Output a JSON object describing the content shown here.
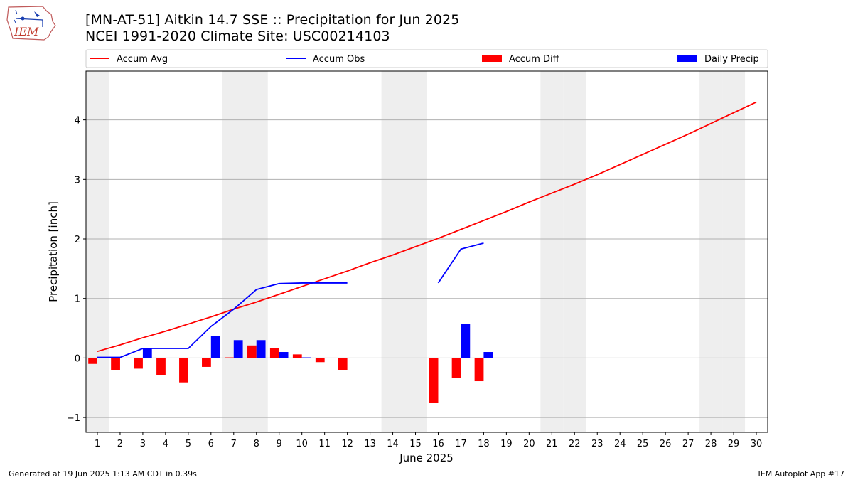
{
  "header": {
    "title_line1": "[MN-AT-51] Aitkin 14.7 SSE :: Precipitation for Jun 2025",
    "title_line2": "NCEI 1991-2020 Climate Site: USC00214103",
    "logo_text": "IEM"
  },
  "footer": {
    "generated": "Generated at 19 Jun 2025 1:13 AM CDT in 0.39s",
    "app": "IEM Autoplot App #17"
  },
  "colors": {
    "accum_avg": "#ff0000",
    "accum_obs": "#0000ff",
    "accum_diff": "#ff0000",
    "daily_precip": "#0000ff",
    "weekend_shading": "#eeeeee",
    "grid": "#b0b0b0"
  },
  "chart_data": {
    "type": "bar",
    "xlabel": "June 2025",
    "ylabel": "Precipitation [inch]",
    "xlim": [
      0.5,
      30.5
    ],
    "ylim": [
      -1.25,
      4.82
    ],
    "x_ticks": [
      1,
      2,
      3,
      4,
      5,
      6,
      7,
      8,
      9,
      10,
      11,
      12,
      13,
      14,
      15,
      16,
      17,
      18,
      19,
      20,
      21,
      22,
      23,
      24,
      25,
      26,
      27,
      28,
      29,
      30
    ],
    "y_ticks": [
      -1,
      0,
      1,
      2,
      3,
      4
    ],
    "grid": "horizontal",
    "legend_position": "top",
    "legend": [
      "Accum Avg",
      "Accum Obs",
      "Accum Diff",
      "Daily Precip"
    ],
    "weekend_days": [
      1,
      7,
      8,
      14,
      15,
      21,
      22,
      28,
      29
    ],
    "series": [
      {
        "name": "Accum Avg",
        "kind": "line",
        "x": [
          1,
          2,
          3,
          4,
          5,
          6,
          7,
          8,
          9,
          10,
          11,
          12,
          13,
          14,
          15,
          16,
          17,
          18,
          19,
          20,
          21,
          22,
          23,
          24,
          25,
          26,
          27,
          28,
          29,
          30
        ],
        "values": [
          0.11,
          0.22,
          0.34,
          0.45,
          0.57,
          0.69,
          0.82,
          0.94,
          1.07,
          1.2,
          1.33,
          1.46,
          1.6,
          1.73,
          1.87,
          2.01,
          2.16,
          2.31,
          2.46,
          2.62,
          2.77,
          2.92,
          3.08,
          3.25,
          3.42,
          3.59,
          3.76,
          3.94,
          4.12,
          4.3
        ]
      },
      {
        "name": "Accum Obs",
        "kind": "line",
        "segments": [
          {
            "x": [
              1,
              2,
              3,
              4,
              5,
              6,
              7,
              8,
              9,
              10,
              11,
              12
            ],
            "values": [
              0.01,
              0.01,
              0.16,
              0.16,
              0.16,
              0.53,
              0.82,
              1.15,
              1.25,
              1.26,
              1.26,
              1.26
            ]
          },
          {
            "x": [
              16,
              17,
              18
            ],
            "values": [
              1.26,
              1.83,
              1.93
            ]
          }
        ]
      },
      {
        "name": "Accum Diff",
        "kind": "bar",
        "x": [
          1,
          2,
          3,
          4,
          5,
          6,
          7,
          8,
          9,
          10,
          11,
          12,
          16,
          17,
          18
        ],
        "values": [
          -0.1,
          -0.21,
          -0.18,
          -0.29,
          -0.41,
          -0.15,
          0.01,
          0.21,
          0.17,
          0.06,
          -0.07,
          -0.2,
          -0.76,
          -0.33,
          -0.39
        ]
      },
      {
        "name": "Daily Precip",
        "kind": "bar",
        "x": [
          1,
          2,
          3,
          4,
          5,
          6,
          7,
          8,
          9,
          10,
          11,
          12,
          16,
          17,
          18
        ],
        "values": [
          0.0,
          0.0,
          0.16,
          0.0,
          0.0,
          0.37,
          0.3,
          0.3,
          0.1,
          0.01,
          0.0,
          0.0,
          0.0,
          0.57,
          0.1
        ]
      }
    ]
  }
}
